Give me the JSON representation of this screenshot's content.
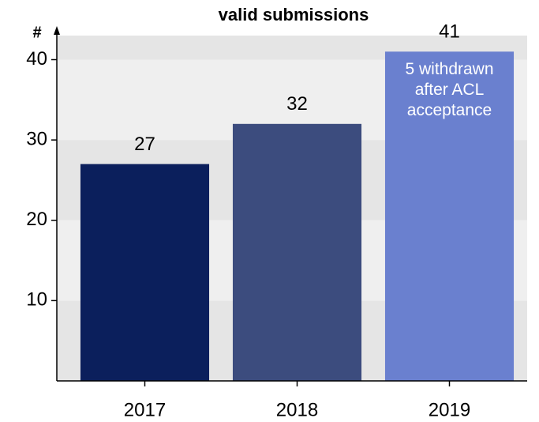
{
  "chart_data": {
    "type": "bar",
    "title": "valid submissions",
    "y_label": "#",
    "categories": [
      "2017",
      "2018",
      "2019"
    ],
    "series": [
      {
        "name": "valid submissions",
        "colors": [
          "#0b1f5c",
          "#3c4c7e",
          "#6a80cf"
        ],
        "values": [
          27,
          32,
          41
        ]
      }
    ],
    "annotation": {
      "category": "2019",
      "lines": [
        "5 withdrawn",
        "after ACL",
        "acceptance"
      ]
    },
    "ylim": [
      0,
      43
    ],
    "yticks": [
      10,
      20,
      30,
      40
    ],
    "grid": true
  }
}
